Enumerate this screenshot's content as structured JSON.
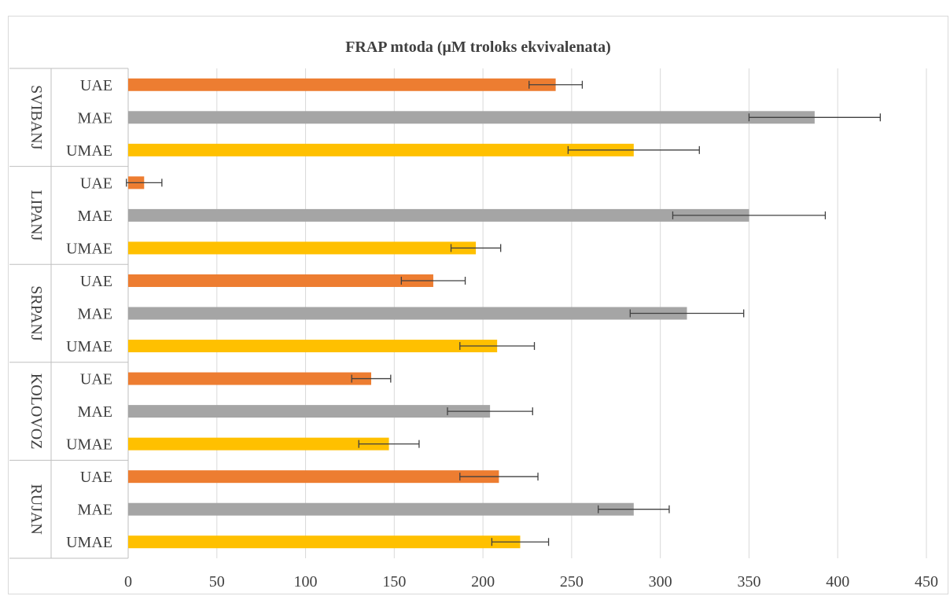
{
  "chart_data": {
    "type": "bar",
    "orientation": "horizontal",
    "title": "FRAP mtoda (μM troloks ekvivalenata)",
    "xlabel": "",
    "ylabel": "",
    "xlim": [
      0,
      450
    ],
    "xticks": [
      "0",
      "50",
      "100",
      "150",
      "200",
      "250",
      "300",
      "350",
      "400",
      "450"
    ],
    "grid": true,
    "colors": {
      "UAE": "#ed7d31",
      "MAE": "#a5a5a5",
      "UMAE": "#ffc000"
    },
    "groups": [
      {
        "name": "SVIBANJ",
        "bars": [
          {
            "label": "UAE",
            "value": 241,
            "error": 15
          },
          {
            "label": "MAE",
            "value": 387,
            "error": 37
          },
          {
            "label": "UMAE",
            "value": 285,
            "error": 37
          }
        ]
      },
      {
        "name": "LIPANJ",
        "bars": [
          {
            "label": "UAE",
            "value": 9,
            "error": 10
          },
          {
            "label": "MAE",
            "value": 350,
            "error": 43
          },
          {
            "label": "UMAE",
            "value": 196,
            "error": 14
          }
        ]
      },
      {
        "name": "SRPANJ",
        "bars": [
          {
            "label": "UAE",
            "value": 172,
            "error": 18
          },
          {
            "label": "MAE",
            "value": 315,
            "error": 32
          },
          {
            "label": "UMAE",
            "value": 208,
            "error": 21
          }
        ]
      },
      {
        "name": "KOLOVOZ",
        "bars": [
          {
            "label": "UAE",
            "value": 137,
            "error": 11
          },
          {
            "label": "MAE",
            "value": 204,
            "error": 24
          },
          {
            "label": "UMAE",
            "value": 147,
            "error": 17
          }
        ]
      },
      {
        "name": "RUJAN",
        "bars": [
          {
            "label": "UAE",
            "value": 209,
            "error": 22
          },
          {
            "label": "MAE",
            "value": 285,
            "error": 20
          },
          {
            "label": "UMAE",
            "value": 221,
            "error": 16
          }
        ]
      }
    ]
  }
}
